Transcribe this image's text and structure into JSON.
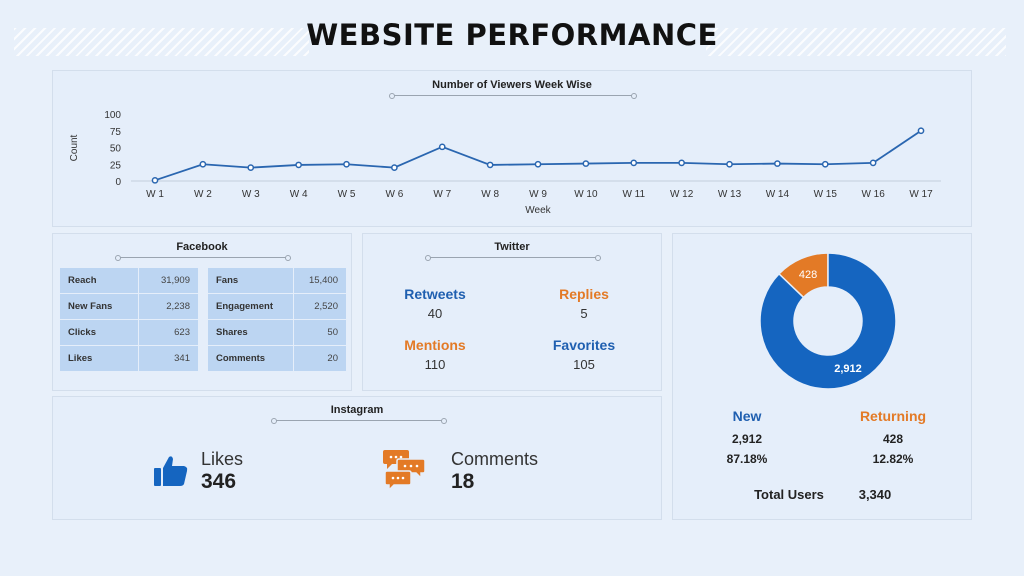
{
  "page_title": "WEBSITE PERFORMANCE",
  "colors": {
    "primary": "#1565c0",
    "accent": "#e37a26",
    "background": "#e8f0fa"
  },
  "chart_data": [
    {
      "type": "line",
      "title": "Number of Viewers Week Wise",
      "xlabel": "Week",
      "ylabel": "Count",
      "categories": [
        "W 1",
        "W 2",
        "W 3",
        "W 4",
        "W 5",
        "W 6",
        "W 7",
        "W 8",
        "W 9",
        "W 10",
        "W 11",
        "W 12",
        "W 13",
        "W 14",
        "W 15",
        "W 16",
        "W 17"
      ],
      "values": [
        1,
        25,
        20,
        24,
        25,
        20,
        51,
        24,
        25,
        26,
        27,
        27,
        25,
        26,
        25,
        27,
        75
      ],
      "ylim": [
        0,
        100
      ],
      "yticks": [
        "0",
        "25",
        "50",
        "75",
        "100"
      ],
      "grid": false,
      "color": "#2a66b0"
    },
    {
      "type": "pie",
      "labels": [
        "New",
        "Returning"
      ],
      "values": [
        2912,
        428
      ],
      "value_labels": [
        "2,912",
        "428"
      ],
      "colors": [
        "#1565c0",
        "#e37a26"
      ],
      "donut": true
    }
  ],
  "facebook": {
    "title": "Facebook",
    "left_rows": [
      {
        "label": "Reach",
        "value": "31,909"
      },
      {
        "label": "New Fans",
        "value": "2,238"
      },
      {
        "label": "Clicks",
        "value": "623"
      },
      {
        "label": "Likes",
        "value": "341"
      }
    ],
    "right_rows": [
      {
        "label": "Fans",
        "value": "15,400"
      },
      {
        "label": "Engagement",
        "value": "2,520"
      },
      {
        "label": "Shares",
        "value": "50"
      },
      {
        "label": "Comments",
        "value": "20"
      }
    ]
  },
  "twitter": {
    "title": "Twitter",
    "retweets_label": "Retweets",
    "retweets_value": "40",
    "replies_label": "Replies",
    "replies_value": "5",
    "mentions_label": "Mentions",
    "mentions_value": "110",
    "favorites_label": "Favorites",
    "favorites_value": "105"
  },
  "instagram": {
    "title": "Instagram",
    "likes_label": "Likes",
    "likes_value": "346",
    "likes_icon": "thumbs-up-icon",
    "comments_label": "Comments",
    "comments_value": "18",
    "comments_icon": "chat-bubbles-icon"
  },
  "users": {
    "new_label": "New",
    "new_value": "2,912",
    "new_pct": "87.18%",
    "returning_label": "Returning",
    "returning_value": "428",
    "returning_pct": "12.82%",
    "total_label": "Total Users",
    "total_value": "3,340"
  }
}
